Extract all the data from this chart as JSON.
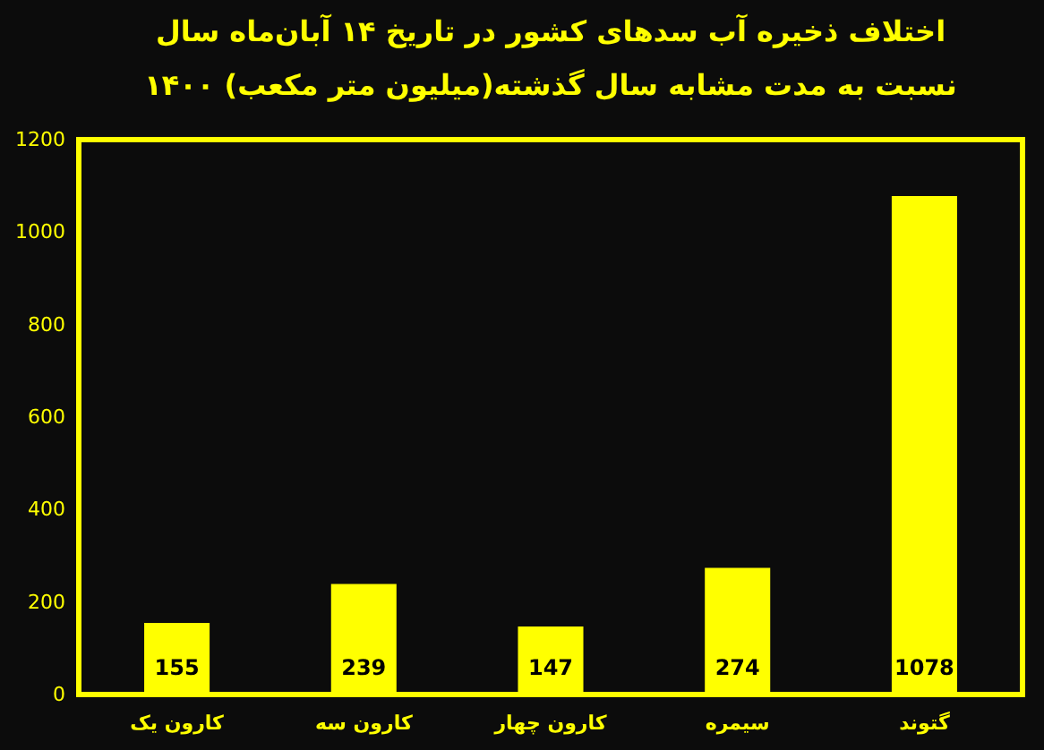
{
  "chart_data": {
    "type": "bar",
    "title": "اختلاف ذخیره آب سدهای کشور در تاریخ ۱۴ آبان‌ماه سال ۱۴۰۰ نسبت به مدت مشابه سال گذشته(میلیون متر مکعب)",
    "categories": [
      "کارون یک",
      "کارون سه",
      "کارون چهار",
      "سیمره",
      "گتوند"
    ],
    "values": [
      155,
      239,
      147,
      274,
      1078
    ],
    "color": "#ffff00",
    "ylim": [
      0,
      1200
    ],
    "yticks": [
      0,
      200,
      400,
      600,
      800,
      1000,
      1200
    ],
    "grid": false,
    "data_labels": true
  }
}
